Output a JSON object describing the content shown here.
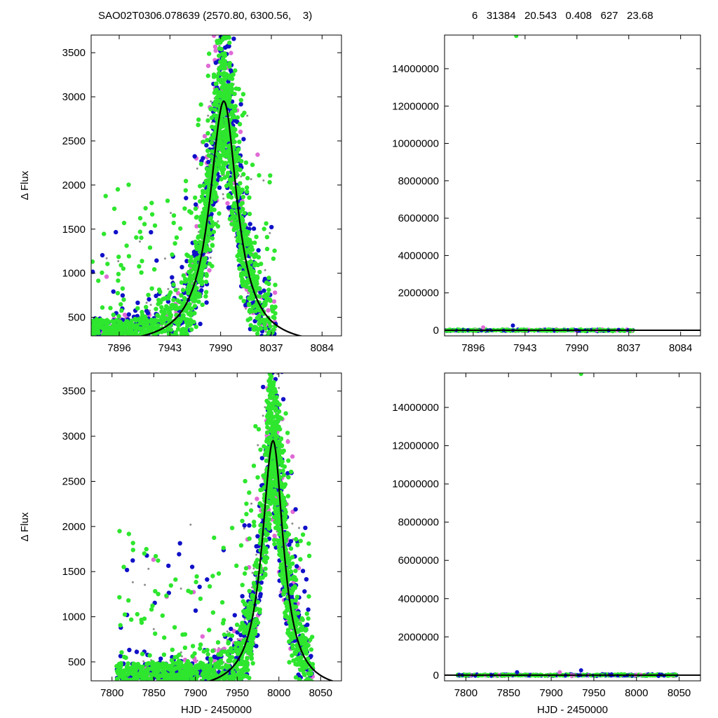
{
  "header": {
    "left_text": "SAO02T0306.078639 (2570.80, 6300.56,    3)",
    "right_text": "6   31384   20.543   0.408   627   23.68"
  },
  "colors": {
    "gray": "#8c8c8c",
    "pink": "#e06ad6",
    "green": "#2ee62e",
    "blue": "#1010c8",
    "curve": "#000000"
  },
  "chart_data": [
    {
      "id": "top-left",
      "type": "scatter",
      "ylabel": "Δ Flux",
      "xlabel": "",
      "xlim": [
        7870,
        8102
      ],
      "ylim": [
        290,
        3700
      ],
      "xticks": [
        7896,
        7943,
        7990,
        8037,
        8084
      ],
      "yticks": [
        500,
        1000,
        1500,
        2000,
        2500,
        3000,
        3500
      ],
      "data_xrange": [
        7870,
        8041
      ],
      "series": [],
      "model_curve": {
        "peak_x": 7993,
        "peak_y": 2950,
        "baseline": 170,
        "width_left": 16,
        "width_right": 15
      }
    },
    {
      "id": "top-right",
      "type": "scatter",
      "ylabel": "",
      "xlabel": "",
      "xlim": [
        7870,
        8102
      ],
      "ylim": [
        -300000,
        15800000
      ],
      "xticks": [
        7896,
        7943,
        7990,
        8037,
        8084
      ],
      "yticks": [
        0,
        2000000,
        4000000,
        6000000,
        8000000,
        10000000,
        12000000,
        14000000
      ],
      "outliers": [
        {
          "x": 7935,
          "y": 15750000,
          "color": "green"
        },
        {
          "x": 7932,
          "y": 250000,
          "color": "blue"
        },
        {
          "x": 7905,
          "y": 150000,
          "color": "pink"
        }
      ],
      "band": {
        "x_start": 7870,
        "x_end": 8041
      }
    },
    {
      "id": "bottom-left",
      "type": "scatter",
      "ylabel": "Δ Flux",
      "xlabel": "HJD - 2450000",
      "xlim": [
        7775,
        8075
      ],
      "ylim": [
        290,
        3700
      ],
      "xticks": [
        7800,
        7850,
        7900,
        7950,
        8000,
        8050
      ],
      "yticks": [
        500,
        1000,
        1500,
        2000,
        2500,
        3000,
        3500
      ],
      "data_xrange": [
        7805,
        8041
      ],
      "series": [],
      "model_curve": {
        "peak_x": 7993,
        "peak_y": 2950,
        "baseline": 170,
        "width_left": 16,
        "width_right": 15
      }
    },
    {
      "id": "bottom-right",
      "type": "scatter",
      "ylabel": "",
      "xlabel": "HJD - 2450000",
      "xlim": [
        7775,
        8075
      ],
      "ylim": [
        -300000,
        15800000
      ],
      "xticks": [
        7800,
        7850,
        7900,
        7950,
        8000,
        8050
      ],
      "yticks": [
        0,
        2000000,
        4000000,
        6000000,
        8000000,
        10000000,
        12000000,
        14000000
      ],
      "outliers": [
        {
          "x": 7935,
          "y": 15750000,
          "color": "green"
        },
        {
          "x": 7935,
          "y": 250000,
          "color": "blue"
        },
        {
          "x": 7910,
          "y": 150000,
          "color": "pink"
        },
        {
          "x": 7860,
          "y": 150000,
          "color": "blue"
        }
      ],
      "band": {
        "x_start": 7790,
        "x_end": 8047
      }
    }
  ]
}
